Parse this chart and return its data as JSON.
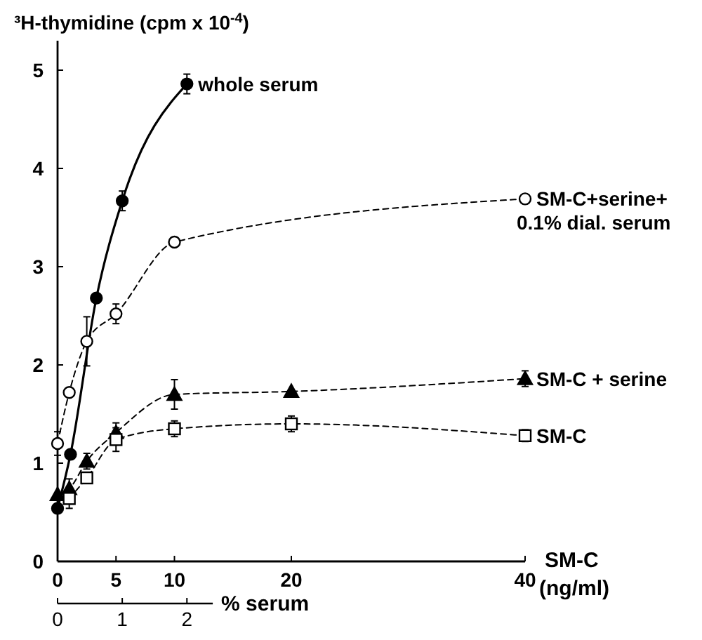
{
  "chart_data": {
    "type": "line",
    "ylabel": "³H-thymidine (cpm x 10$^{-4}$)",
    "xlabel": "SM-C\n(ng/ml)",
    "x2label": "% serum",
    "xlim": [
      0,
      40
    ],
    "xticks": [
      0,
      5,
      10,
      20,
      40
    ],
    "x2lim": [
      0,
      2.4
    ],
    "x2ticks": [
      0,
      1,
      2
    ],
    "ylim": [
      0,
      5.3
    ],
    "yticks": [
      0,
      1,
      2,
      3,
      4,
      5
    ],
    "grid": false,
    "series": [
      {
        "name": "whole serum",
        "color": "#000000",
        "axis": "x2",
        "x": [
          0,
          0.2,
          0.6,
          1,
          2
        ],
        "values": [
          0.54,
          1.09,
          2.68,
          3.67,
          4.86
        ],
        "errors": [
          null,
          null,
          null,
          0.1,
          0.1
        ],
        "marker": "circle",
        "line_style": "solid"
      },
      {
        "name": "SM-C+serine+\n0.1% dial. serum",
        "color": "#000000",
        "x": [
          0,
          1,
          2.5,
          5,
          10,
          40
        ],
        "values": [
          1.2,
          1.72,
          2.24,
          2.52,
          3.25,
          3.69
        ],
        "errors": [
          0.12,
          null,
          0.25,
          0.1,
          0.05,
          null
        ],
        "marker": "circle",
        "line_style": "dashed"
      },
      {
        "name": "SM-C + serine",
        "color": "#000000",
        "x": [
          0,
          1,
          2.5,
          5,
          10,
          20,
          40
        ],
        "values": [
          0.68,
          0.74,
          1.02,
          1.31,
          1.7,
          1.73,
          1.86
        ],
        "errors": [
          null,
          0.1,
          0.08,
          0.1,
          0.15,
          null,
          0.08
        ],
        "marker": "triangle",
        "line_style": "dashed"
      },
      {
        "name": "SM-C",
        "color": "#000000",
        "x": [
          1,
          2.5,
          5,
          10,
          20,
          40
        ],
        "values": [
          0.64,
          0.85,
          1.24,
          1.35,
          1.4,
          1.28
        ],
        "errors": [
          0.1,
          null,
          0.12,
          0.08,
          0.08,
          0.06
        ],
        "marker": "square",
        "line_style": "dashed"
      }
    ]
  }
}
